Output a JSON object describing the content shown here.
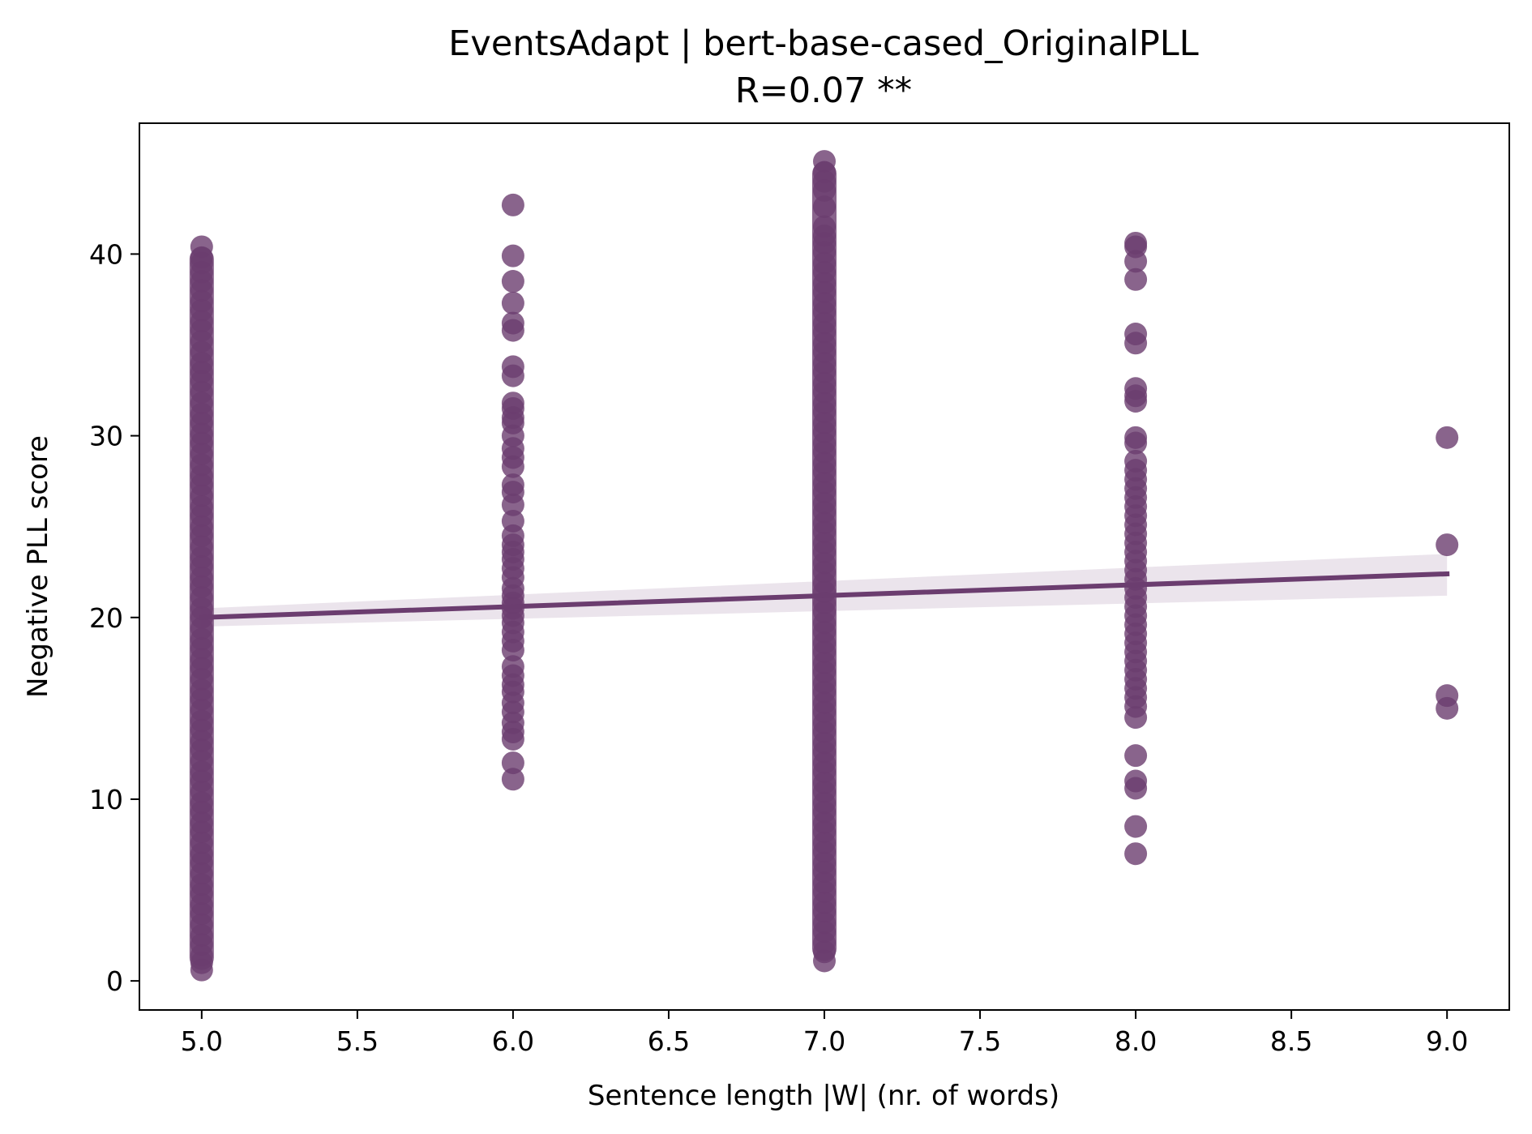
{
  "chart_data": {
    "type": "scatter",
    "title": "EventsAdapt | bert-base-cased_OriginalPLL",
    "subtitle": "R=0.07 **",
    "xlabel": "Sentence length |W| (nr. of words)",
    "ylabel": "Negative PLL score",
    "xlim": [
      4.8,
      9.2
    ],
    "ylim": [
      -1.6,
      47.2
    ],
    "xticks": [
      5.0,
      5.5,
      6.0,
      6.5,
      7.0,
      7.5,
      8.0,
      8.5,
      9.0
    ],
    "xtick_labels": [
      "5.0",
      "5.5",
      "6.0",
      "6.5",
      "7.0",
      "7.5",
      "8.0",
      "8.5",
      "9.0"
    ],
    "yticks": [
      0,
      10,
      20,
      30,
      40
    ],
    "ytick_labels": [
      "0",
      "10",
      "20",
      "30",
      "40"
    ],
    "grid": false,
    "legend": "none",
    "colors": {
      "points": "#6b3d6f",
      "line": "#6b3d6f",
      "band": "#e8dfe9"
    },
    "series": [
      {
        "x": 5,
        "range": [
          0.6,
          40.4
        ],
        "y": [
          40.4,
          39.8,
          39.5,
          39.0,
          38.5,
          38.0,
          37.4,
          36.9,
          36.3,
          35.8,
          35.2,
          34.6,
          34.0,
          33.5,
          33.0,
          32.4,
          31.8,
          31.2,
          30.7,
          30.1,
          29.6,
          29.0,
          28.4,
          27.8,
          27.3,
          26.7,
          26.1,
          25.6,
          25.0,
          24.5,
          23.9,
          23.3,
          22.8,
          22.2,
          21.7,
          21.1,
          20.5,
          20.0,
          19.4,
          18.8,
          18.3,
          17.7,
          17.2,
          16.6,
          16.0,
          15.5,
          14.9,
          14.3,
          13.8,
          13.2,
          12.7,
          12.1,
          11.5,
          11.0,
          10.4,
          9.8,
          9.3,
          8.7,
          8.2,
          7.6,
          7.0,
          6.5,
          5.9,
          5.3,
          4.8,
          4.2,
          3.7,
          3.1,
          2.5,
          2.0,
          1.4,
          1.0,
          0.6
        ]
      },
      {
        "x": 6,
        "y": [
          42.7,
          39.9,
          38.5,
          37.3,
          36.2,
          35.8,
          33.8,
          33.3,
          31.8,
          31.5,
          31.0,
          30.7,
          30.0,
          29.3,
          28.8,
          28.3,
          27.3,
          26.9,
          26.2,
          25.3,
          24.5,
          24.0,
          23.6,
          23.2,
          22.7,
          22.2,
          21.6,
          21.2,
          20.8,
          20.5,
          20.1,
          19.7,
          19.2,
          18.7,
          18.2,
          17.3,
          16.8,
          16.3,
          15.9,
          15.3,
          14.8,
          14.2,
          13.7,
          13.3,
          12.0,
          11.1
        ]
      },
      {
        "x": 7,
        "range": [
          1.1,
          45.1
        ],
        "y": [
          45.1,
          44.5,
          44.0,
          43.5,
          42.6,
          41.5,
          41.0,
          40.6,
          40.1,
          39.5,
          39.0,
          38.4,
          37.9,
          37.3,
          36.8,
          36.2,
          35.7,
          35.1,
          34.6,
          34.0,
          33.5,
          32.9,
          32.4,
          31.8,
          31.3,
          30.7,
          30.2,
          29.6,
          29.1,
          28.5,
          28.0,
          27.4,
          26.9,
          26.3,
          25.8,
          25.2,
          24.7,
          24.1,
          23.6,
          23.0,
          22.5,
          21.9,
          21.4,
          20.8,
          20.3,
          19.7,
          19.2,
          18.6,
          18.1,
          17.5,
          17.0,
          16.4,
          15.9,
          15.3,
          14.8,
          14.2,
          13.7,
          13.1,
          12.6,
          12.0,
          11.5,
          10.9,
          10.4,
          9.8,
          9.3,
          8.7,
          8.2,
          7.6,
          7.1,
          6.5,
          6.0,
          5.4,
          4.9,
          4.3,
          3.8,
          3.2,
          2.7,
          2.1,
          1.6,
          1.1
        ]
      },
      {
        "x": 8,
        "y": [
          40.6,
          40.4,
          39.6,
          38.6,
          35.6,
          35.1,
          32.6,
          32.2,
          31.9,
          29.9,
          29.6,
          28.6,
          28.1,
          27.6,
          27.1,
          26.6,
          26.1,
          25.6,
          25.1,
          24.6,
          24.1,
          23.6,
          23.1,
          22.6,
          22.1,
          21.6,
          21.1,
          20.6,
          20.1,
          19.6,
          19.1,
          18.6,
          18.1,
          17.6,
          17.1,
          16.6,
          16.1,
          15.6,
          15.1,
          14.5,
          12.4,
          11.0,
          10.6,
          8.5,
          7.0
        ]
      },
      {
        "x": 9,
        "y": [
          29.9,
          24.0,
          15.7,
          15.0
        ]
      }
    ],
    "regression": {
      "x": [
        5,
        9
      ],
      "y": [
        20.0,
        22.4
      ],
      "ci_low": [
        19.5,
        21.2
      ],
      "ci_high": [
        20.5,
        23.5
      ]
    }
  }
}
